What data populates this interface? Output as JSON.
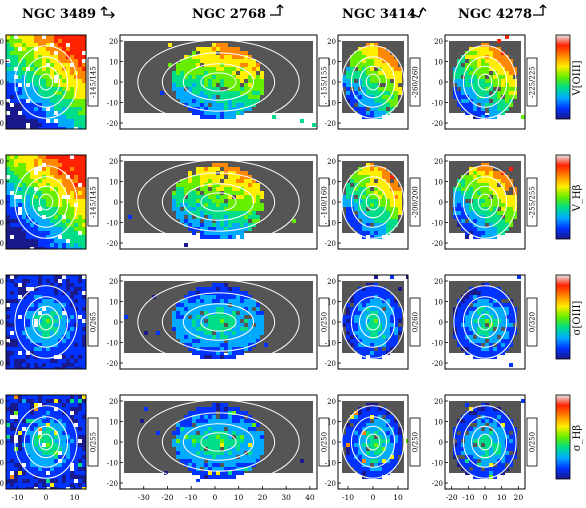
{
  "columns": [
    {
      "name": "NGC 3489",
      "xticks": [
        "-10",
        "0",
        "10"
      ]
    },
    {
      "name": "NGC 2768",
      "xticks": [
        "-30",
        "-20",
        "-10",
        "0",
        "10",
        "20",
        "30",
        "40"
      ]
    },
    {
      "name": "NGC 3414",
      "xticks": [
        "-10",
        "0",
        "10"
      ]
    },
    {
      "name": "NGC 4278",
      "xticks": [
        "-20",
        "-10",
        "0",
        "10",
        "20"
      ]
    }
  ],
  "row_yticks": [
    [
      "20",
      "10",
      "0",
      "-10",
      "-20"
    ],
    [
      "20",
      "10",
      "0",
      "-10",
      "-20"
    ],
    [
      "20",
      "10",
      "0",
      "-10",
      "-20"
    ],
    [
      "20",
      "10",
      "0",
      "-10",
      "-20"
    ]
  ],
  "ranges": [
    [
      "-145/145",
      "-155/155",
      "-260/260",
      "-225/225"
    ],
    [
      "-145/145",
      "-160/160",
      "-200/200",
      "-255/255"
    ],
    [
      "0/265",
      "0/250",
      "0/260",
      "0/320"
    ],
    [
      "0/255",
      "0/250",
      "0/250",
      "0/250"
    ]
  ],
  "colorbar_labels": [
    "V[OIII]",
    "V_Hβ",
    "σ[OIII]",
    "σ_Hβ"
  ],
  "colors": {
    "masked": "#555555",
    "background": "#ffffff",
    "contour": "#ffffff"
  },
  "colormap": [
    "#1a1a8c",
    "#0033ff",
    "#00aaff",
    "#00dd88",
    "#66ee00",
    "#ffee00",
    "#ff8800",
    "#ff2200",
    "#e8e8e8"
  ]
}
